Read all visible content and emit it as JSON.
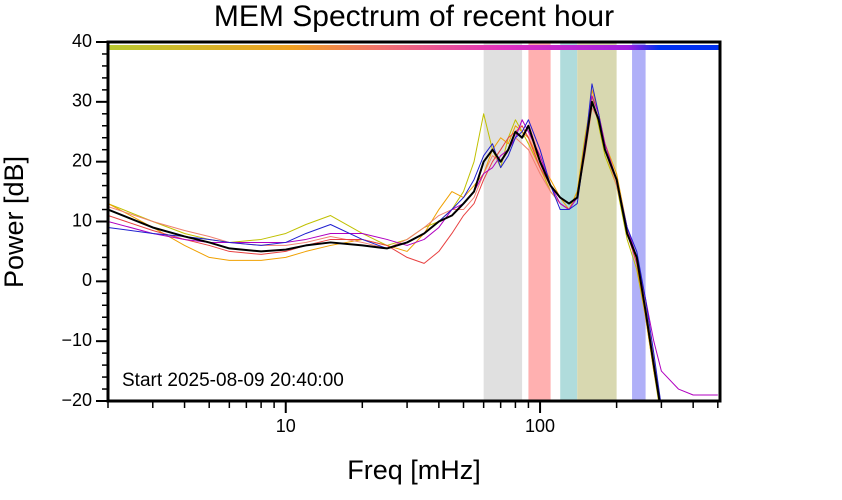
{
  "chart_data": {
    "type": "line",
    "title": "MEM Spectrum of recent hour",
    "x_label": "Freq [mHz]",
    "y_label": "Power [dB]",
    "annotation": "Start 2025-08-09 20:40:00",
    "log_x": true,
    "xlim": [
      2,
      510
    ],
    "ylim": [
      -20,
      40
    ],
    "xticks": [
      10,
      100
    ],
    "yticks": [
      {
        "value": -20,
        "label": "−20"
      },
      {
        "value": -10,
        "label": "−10"
      },
      0,
      10,
      20,
      30,
      40
    ],
    "bands": [
      {
        "from": 60,
        "to": 85,
        "color": "#e0e0e0"
      },
      {
        "from": 90,
        "to": 110,
        "color": "#ffb0b0"
      },
      {
        "from": 120,
        "to": 140,
        "color": "#b0dcdc"
      },
      {
        "from": 140,
        "to": 200,
        "color": "#d8d8b0"
      },
      {
        "from": 230,
        "to": 260,
        "color": "#b0b0f8"
      }
    ],
    "x": [
      2,
      3,
      4,
      5,
      6,
      8,
      10,
      12,
      15,
      20,
      25,
      30,
      35,
      40,
      45,
      50,
      55,
      60,
      65,
      70,
      75,
      80,
      85,
      90,
      100,
      110,
      120,
      130,
      140,
      150,
      160,
      170,
      180,
      200,
      220,
      240,
      260,
      280,
      300,
      350,
      400,
      500
    ],
    "series": [
      {
        "color": "#c0c000",
        "values": [
          13,
          10,
          8,
          7,
          6.5,
          7,
          8,
          9.5,
          11,
          8,
          6,
          7,
          9,
          10,
          12,
          15,
          20,
          28,
          22,
          19,
          24,
          27,
          25,
          23,
          19,
          15,
          13,
          12,
          15,
          24,
          31,
          26,
          21,
          16,
          7,
          2,
          -6,
          -15,
          -23,
          null,
          null,
          null
        ]
      },
      {
        "color": "#f0a000",
        "values": [
          13,
          9,
          6,
          4,
          3.5,
          3.5,
          4,
          5,
          6,
          7,
          6,
          5,
          8,
          12,
          15,
          14,
          16,
          18,
          22,
          24,
          23,
          26,
          25,
          24,
          20,
          17,
          14,
          12,
          15,
          23,
          32,
          28,
          23,
          18,
          9,
          3,
          -6,
          -15,
          -22,
          null,
          null,
          null
        ]
      },
      {
        "color": "#f08070",
        "values": [
          12.5,
          10,
          8.5,
          7.5,
          6.5,
          6,
          6,
          6.5,
          7.5,
          6.5,
          5.5,
          7,
          9,
          11,
          12,
          12,
          14,
          18,
          21,
          20,
          22,
          24,
          23,
          22,
          18,
          15,
          13,
          12,
          14,
          21,
          29,
          27,
          22,
          16,
          9,
          4,
          -4,
          -13,
          -21,
          null,
          null,
          null
        ]
      },
      {
        "color": "#e84040",
        "values": [
          11,
          8.5,
          7,
          6,
          5,
          4.5,
          5,
          6,
          7,
          7,
          6,
          4,
          3,
          5,
          8,
          11,
          13,
          17,
          20,
          22,
          24,
          25,
          26,
          24,
          19,
          16,
          14,
          13,
          14,
          22,
          30,
          27,
          22,
          17,
          8,
          3,
          -5,
          -14,
          -22,
          null,
          null,
          null
        ]
      },
      {
        "color": "#b000c0",
        "values": [
          10,
          8,
          7,
          6.5,
          6.5,
          6.5,
          6.5,
          7,
          8,
          8,
          7,
          6,
          7,
          9,
          12,
          13,
          15,
          18,
          19,
          21,
          22,
          24,
          27,
          25,
          21,
          16,
          13,
          12,
          14,
          23,
          31,
          28,
          23,
          17,
          9,
          4,
          -3,
          -10,
          -15,
          -18,
          -19,
          -19
        ]
      },
      {
        "color": "#2020d0",
        "values": [
          9,
          8,
          7.5,
          7,
          6.5,
          6,
          6.5,
          8,
          9.5,
          7,
          5.5,
          6.5,
          8,
          10,
          12,
          14,
          17,
          21,
          23,
          19,
          21,
          24,
          25,
          27,
          22,
          16,
          12,
          12,
          13,
          22,
          33,
          28,
          22,
          17,
          9,
          5,
          -3,
          -12,
          -21,
          null,
          null,
          null
        ]
      },
      {
        "color": "#000000",
        "values": [
          12,
          9,
          7.5,
          6.5,
          5.5,
          5,
          5.3,
          6,
          6.5,
          6,
          5.5,
          6.5,
          8,
          10,
          11,
          13,
          15,
          20,
          22,
          20,
          22,
          25,
          24,
          26,
          20,
          16,
          14,
          13,
          14,
          22,
          30,
          27,
          22,
          17,
          8,
          4,
          -5,
          -14,
          -22,
          null,
          null,
          null
        ]
      }
    ]
  }
}
